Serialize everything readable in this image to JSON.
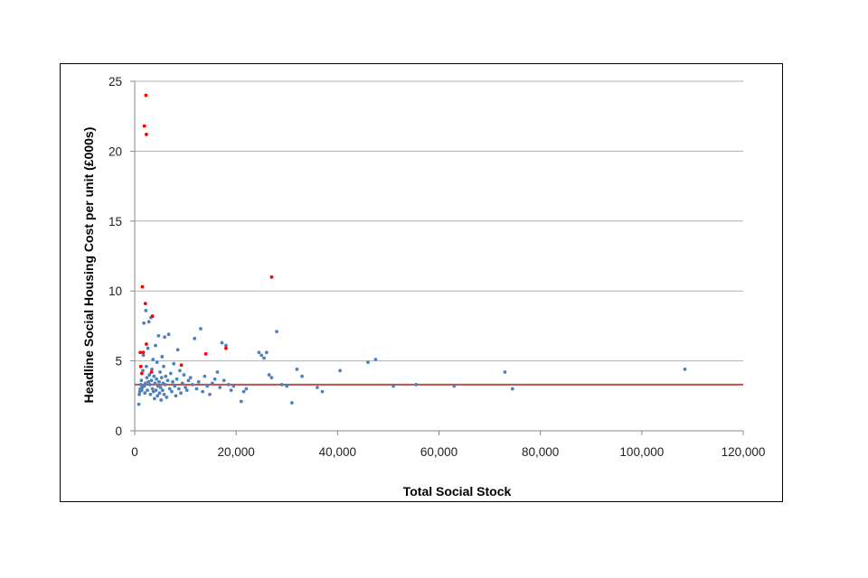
{
  "chart_data": {
    "type": "scatter",
    "title": "",
    "xlabel": "Total Social Stock",
    "ylabel": "Headline Social Housing Cost per unit (£000s)",
    "xlim": [
      0,
      120000
    ],
    "ylim": [
      0,
      25
    ],
    "x_ticks": [
      0,
      20000,
      40000,
      60000,
      80000,
      100000,
      120000
    ],
    "x_tick_labels": [
      "0",
      "20,000",
      "40,000",
      "60,000",
      "80,000",
      "100,000",
      "120,000"
    ],
    "y_ticks": [
      0,
      5,
      10,
      15,
      20,
      25
    ],
    "y_tick_labels": [
      "0",
      "5",
      "10",
      "15",
      "20",
      "25"
    ],
    "grid": "horizontal",
    "legend": "none",
    "colors": {
      "series": "#4f81bd",
      "outliers": "#ff0000",
      "reference_line": "#c0504d",
      "grid": "#b0b0b0"
    },
    "series": [
      {
        "color": "#4f81bd",
        "points": [
          [
            800,
            1.9
          ],
          [
            900,
            2.6
          ],
          [
            1000,
            2.8
          ],
          [
            1100,
            3.0
          ],
          [
            1200,
            3.3
          ],
          [
            1300,
            3.6
          ],
          [
            1400,
            2.9
          ],
          [
            1500,
            3.1
          ],
          [
            1600,
            4.3
          ],
          [
            1700,
            5.4
          ],
          [
            1800,
            7.7
          ],
          [
            1900,
            3.2
          ],
          [
            2000,
            2.7
          ],
          [
            2100,
            3.4
          ],
          [
            2200,
            8.6
          ],
          [
            2300,
            4.6
          ],
          [
            2400,
            3.8
          ],
          [
            2500,
            2.9
          ],
          [
            2600,
            5.9
          ],
          [
            2700,
            3.5
          ],
          [
            2800,
            7.8
          ],
          [
            2900,
            4.0
          ],
          [
            3000,
            3.3
          ],
          [
            3100,
            2.6
          ],
          [
            3200,
            8.1
          ],
          [
            3300,
            3.6
          ],
          [
            3400,
            4.4
          ],
          [
            3500,
            3.0
          ],
          [
            3600,
            5.1
          ],
          [
            3700,
            2.8
          ],
          [
            3800,
            3.9
          ],
          [
            3900,
            2.3
          ],
          [
            4000,
            3.4
          ],
          [
            4100,
            6.1
          ],
          [
            4200,
            2.9
          ],
          [
            4300,
            3.7
          ],
          [
            4400,
            4.9
          ],
          [
            4500,
            2.5
          ],
          [
            4600,
            3.2
          ],
          [
            4700,
            6.8
          ],
          [
            4800,
            3.5
          ],
          [
            4900,
            2.7
          ],
          [
            5000,
            4.2
          ],
          [
            5100,
            3.1
          ],
          [
            5200,
            2.2
          ],
          [
            5300,
            3.8
          ],
          [
            5400,
            5.3
          ],
          [
            5500,
            2.9
          ],
          [
            5600,
            3.4
          ],
          [
            5700,
            4.6
          ],
          [
            5800,
            2.6
          ],
          [
            5900,
            6.7
          ],
          [
            6000,
            3.3
          ],
          [
            6100,
            3.9
          ],
          [
            6300,
            2.4
          ],
          [
            6500,
            3.6
          ],
          [
            6700,
            6.9
          ],
          [
            6900,
            3.0
          ],
          [
            7100,
            4.1
          ],
          [
            7300,
            2.8
          ],
          [
            7500,
            3.5
          ],
          [
            7700,
            4.8
          ],
          [
            7900,
            3.2
          ],
          [
            8100,
            2.5
          ],
          [
            8300,
            3.7
          ],
          [
            8500,
            5.8
          ],
          [
            8700,
            3.0
          ],
          [
            8900,
            4.3
          ],
          [
            9100,
            2.7
          ],
          [
            9400,
            3.4
          ],
          [
            9700,
            4.0
          ],
          [
            10000,
            3.1
          ],
          [
            10300,
            2.9
          ],
          [
            10600,
            3.6
          ],
          [
            11000,
            3.8
          ],
          [
            11400,
            3.3
          ],
          [
            11800,
            6.6
          ],
          [
            12200,
            3.0
          ],
          [
            12600,
            3.5
          ],
          [
            13000,
            7.3
          ],
          [
            13400,
            2.8
          ],
          [
            13800,
            3.9
          ],
          [
            14300,
            3.2
          ],
          [
            14800,
            2.6
          ],
          [
            15300,
            3.4
          ],
          [
            15800,
            3.7
          ],
          [
            16300,
            4.2
          ],
          [
            16800,
            3.1
          ],
          [
            17200,
            6.3
          ],
          [
            17600,
            3.6
          ],
          [
            18000,
            6.1
          ],
          [
            18500,
            3.3
          ],
          [
            19000,
            2.9
          ],
          [
            19500,
            3.2
          ],
          [
            21000,
            2.1
          ],
          [
            21500,
            2.8
          ],
          [
            22000,
            3.0
          ],
          [
            24500,
            5.6
          ],
          [
            25000,
            5.4
          ],
          [
            25500,
            5.2
          ],
          [
            26000,
            5.6
          ],
          [
            26500,
            4.0
          ],
          [
            27000,
            3.8
          ],
          [
            28000,
            7.1
          ],
          [
            29000,
            3.3
          ],
          [
            30000,
            3.2
          ],
          [
            31000,
            2.0
          ],
          [
            32000,
            4.4
          ],
          [
            33000,
            3.9
          ],
          [
            36000,
            3.1
          ],
          [
            37000,
            2.8
          ],
          [
            40500,
            4.3
          ],
          [
            46000,
            4.9
          ],
          [
            47500,
            5.1
          ],
          [
            51000,
            3.2
          ],
          [
            55500,
            3.3
          ],
          [
            63000,
            3.2
          ],
          [
            73000,
            4.2
          ],
          [
            74500,
            3.0
          ],
          [
            108500,
            4.4
          ]
        ]
      },
      {
        "color": "#ff0000",
        "points": [
          [
            2200,
            24.0
          ],
          [
            1900,
            21.8
          ],
          [
            2300,
            21.2
          ],
          [
            1500,
            10.3
          ],
          [
            2100,
            9.1
          ],
          [
            3500,
            8.2
          ],
          [
            27000,
            11.0
          ],
          [
            1100,
            5.6
          ],
          [
            1700,
            5.6
          ],
          [
            2300,
            6.2
          ],
          [
            1200,
            4.6
          ],
          [
            1400,
            4.1
          ],
          [
            3300,
            4.2
          ],
          [
            14000,
            5.5
          ],
          [
            18000,
            5.9
          ],
          [
            9200,
            4.7
          ]
        ]
      }
    ],
    "reference_line": {
      "y": 3.3,
      "color": "#c0504d"
    }
  }
}
